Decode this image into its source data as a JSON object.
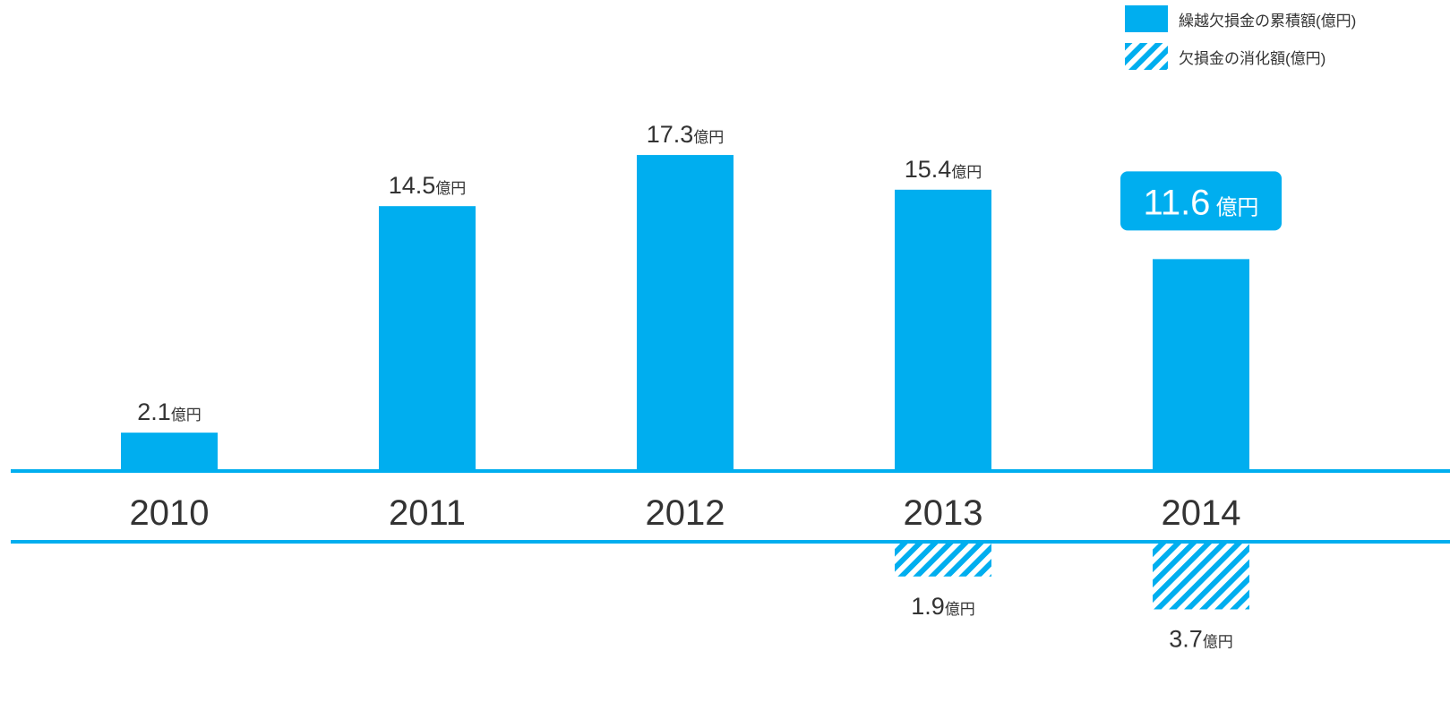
{
  "colors": {
    "bar": "#00aeef",
    "text": "#333333",
    "highlight_text": "#ffffff"
  },
  "legend": {
    "items": [
      {
        "label": "繰越欠損金の累積額(億円)",
        "style": "solid"
      },
      {
        "label": "欠損金の消化額(億円)",
        "style": "hatched"
      }
    ]
  },
  "chart_data": {
    "type": "bar",
    "categories": [
      "2010",
      "2011",
      "2012",
      "2013",
      "2014"
    ],
    "unit": "億円",
    "series": [
      {
        "name": "繰越欠損金の累積額(億円)",
        "values": [
          2.1,
          14.5,
          17.3,
          15.4,
          11.6
        ],
        "style": "solid",
        "direction": "up"
      },
      {
        "name": "欠損金の消化額(億円)",
        "values": [
          null,
          null,
          null,
          1.9,
          3.7
        ],
        "style": "hatched",
        "direction": "down"
      }
    ],
    "highlight": {
      "series": 0,
      "category": "2014"
    },
    "grid": false
  }
}
